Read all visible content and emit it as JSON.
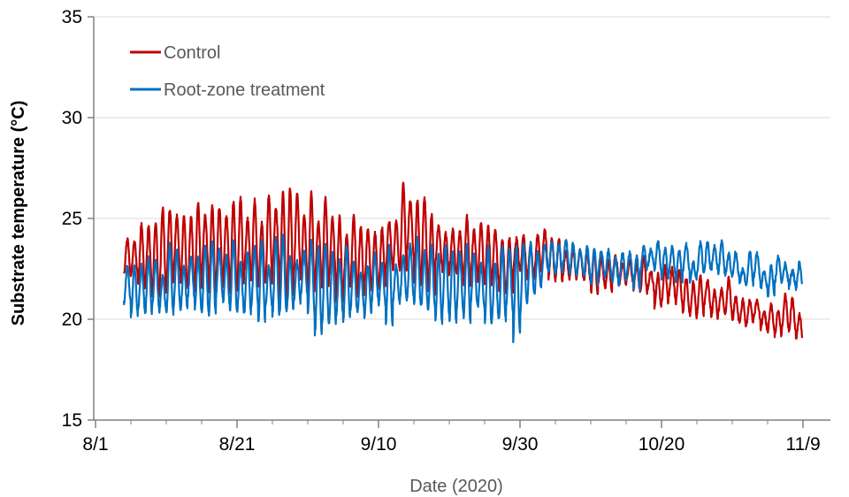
{
  "chart_data": {
    "type": "line",
    "xlabel": "Date (2020)",
    "ylabel": "Substrate temperature (°C)",
    "x_ticks": [
      "8/1",
      "8/21",
      "9/10",
      "9/30",
      "10/20",
      "11/9"
    ],
    "y_ticks": [
      "15",
      "20",
      "25",
      "30",
      "35"
    ],
    "ylim": [
      15,
      35
    ],
    "xlim": [
      "2020-08-01",
      "2020-11-12"
    ],
    "grid": "horizontal",
    "legend": "top-left",
    "series": [
      {
        "name": "Control",
        "color": "#C00000",
        "x": [
          "2020-08-05",
          "2020-08-10",
          "2020-08-15",
          "2020-08-20",
          "2020-08-25",
          "2020-08-30",
          "2020-09-04",
          "2020-09-09",
          "2020-09-14",
          "2020-09-19",
          "2020-09-24",
          "2020-09-29",
          "2020-10-04",
          "2020-10-09",
          "2020-10-14",
          "2020-10-19",
          "2020-10-24",
          "2020-10-29",
          "2020-11-03",
          "2020-11-08"
        ],
        "mean": [
          23.5,
          23.2,
          23.6,
          23.4,
          23.6,
          23.9,
          23.2,
          23.0,
          24.3,
          23.2,
          23.0,
          22.8,
          23.1,
          22.5,
          22.2,
          21.8,
          21.3,
          21.0,
          20.4,
          19.9
        ],
        "amplitude": [
          1.0,
          1.5,
          1.9,
          2.0,
          1.9,
          2.0,
          1.5,
          1.4,
          1.9,
          1.2,
          1.3,
          1.2,
          1.0,
          0.9,
          0.8,
          0.7,
          0.7,
          0.7,
          0.7,
          0.6
        ]
      },
      {
        "name": "Root-zone treatment",
        "color": "#0070C0",
        "x": [
          "2020-08-05",
          "2020-08-10",
          "2020-08-15",
          "2020-08-20",
          "2020-08-25",
          "2020-08-30",
          "2020-09-04",
          "2020-09-09",
          "2020-09-14",
          "2020-09-19",
          "2020-09-24",
          "2020-09-29",
          "2020-10-04",
          "2020-10-09",
          "2020-10-14",
          "2020-10-19",
          "2020-10-24",
          "2020-10-29",
          "2020-11-03",
          "2020-11-08"
        ],
        "mean": [
          21.3,
          21.6,
          21.9,
          22.0,
          22.0,
          21.9,
          21.4,
          21.7,
          22.0,
          21.9,
          21.6,
          21.6,
          23.2,
          23.0,
          22.6,
          22.8,
          22.7,
          22.8,
          22.2,
          22.4
        ],
        "amplitude": [
          1.0,
          1.3,
          1.4,
          1.5,
          1.6,
          1.6,
          1.5,
          1.4,
          1.4,
          1.4,
          1.5,
          1.8,
          0.6,
          0.8,
          0.6,
          0.6,
          0.6,
          0.6,
          0.6,
          0.6
        ]
      }
    ]
  }
}
